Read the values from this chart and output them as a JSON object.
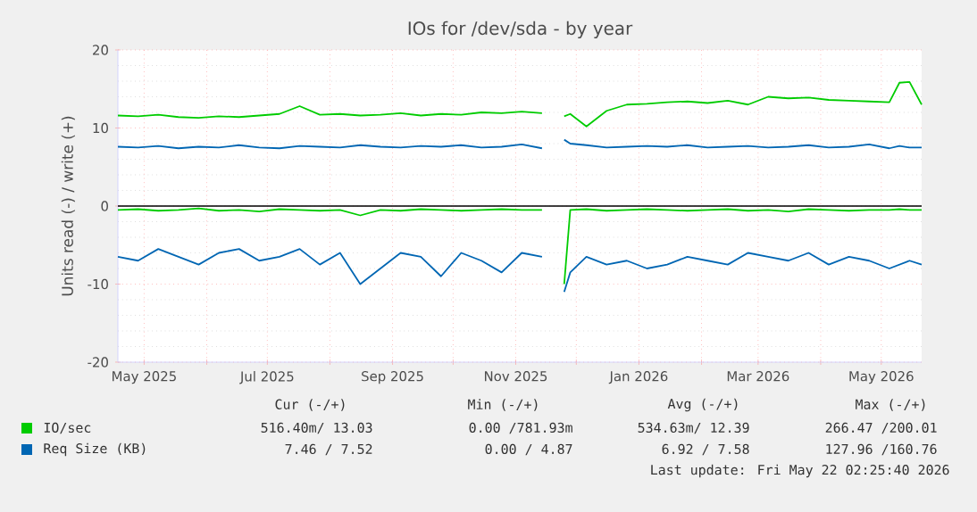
{
  "chart_data": {
    "type": "line",
    "title": "IOs for /dev/sda - by year",
    "ylabel": "Units read (-) / write (+)",
    "x": [
      "2025-04-18",
      "2025-04-28",
      "2025-05-08",
      "2025-05-18",
      "2025-05-28",
      "2025-06-07",
      "2025-06-17",
      "2025-06-27",
      "2025-07-07",
      "2025-07-17",
      "2025-07-27",
      "2025-08-06",
      "2025-08-16",
      "2025-08-26",
      "2025-09-05",
      "2025-09-15",
      "2025-09-25",
      "2025-10-05",
      "2025-10-15",
      "2025-10-25",
      "2025-11-04",
      "2025-11-14",
      "2025-11-20",
      "2025-11-25",
      "2025-11-28",
      "2025-12-06",
      "2025-12-16",
      "2025-12-26",
      "2026-01-05",
      "2026-01-15",
      "2026-01-25",
      "2026-02-04",
      "2026-02-14",
      "2026-02-24",
      "2026-03-06",
      "2026-03-16",
      "2026-03-26",
      "2026-04-05",
      "2026-04-15",
      "2026-04-25",
      "2026-05-05",
      "2026-05-10",
      "2026-05-15",
      "2026-05-21"
    ],
    "series": [
      {
        "name": "IO/sec",
        "color": "#00cc00",
        "values": [
          11.6,
          11.5,
          11.7,
          11.4,
          11.3,
          11.5,
          11.4,
          11.6,
          11.8,
          12.8,
          11.7,
          11.8,
          11.6,
          11.7,
          11.9,
          11.6,
          11.8,
          11.7,
          12.0,
          11.9,
          12.1,
          11.9,
          null,
          11.5,
          11.8,
          10.2,
          12.2,
          13.0,
          13.1,
          13.3,
          13.4,
          13.2,
          13.5,
          13.0,
          14.0,
          13.8,
          13.9,
          13.6,
          13.5,
          13.4,
          13.3,
          15.8,
          15.9,
          13.0
        ]
      },
      {
        "name": "Req Size (KB)",
        "color": "#0066b3",
        "values": [
          7.6,
          7.5,
          7.7,
          7.4,
          7.6,
          7.5,
          7.8,
          7.5,
          7.4,
          7.7,
          7.6,
          7.5,
          7.8,
          7.6,
          7.5,
          7.7,
          7.6,
          7.8,
          7.5,
          7.6,
          7.9,
          7.4,
          null,
          8.5,
          8.0,
          7.8,
          7.5,
          7.6,
          7.7,
          7.6,
          7.8,
          7.5,
          7.6,
          7.7,
          7.5,
          7.6,
          7.8,
          7.5,
          7.6,
          7.9,
          7.4,
          7.7,
          7.5,
          7.5
        ]
      },
      {
        "color": "#00cc00",
        "values": [
          -0.5,
          -0.4,
          -0.6,
          -0.5,
          -0.3,
          -0.6,
          -0.5,
          -0.7,
          -0.4,
          -0.5,
          -0.6,
          -0.5,
          -1.2,
          -0.5,
          -0.6,
          -0.4,
          -0.5,
          -0.6,
          -0.5,
          -0.4,
          -0.5,
          -0.5,
          null,
          -10,
          -0.5,
          -0.4,
          -0.6,
          -0.5,
          -0.4,
          -0.5,
          -0.6,
          -0.5,
          -0.4,
          -0.6,
          -0.5,
          -0.7,
          -0.4,
          -0.5,
          -0.6,
          -0.5,
          -0.5,
          -0.4,
          -0.5,
          -0.5
        ]
      },
      {
        "color": "#0066b3",
        "values": [
          -6.5,
          -7.0,
          -5.5,
          -6.5,
          -7.5,
          -6.0,
          -5.5,
          -7.0,
          -6.5,
          -5.5,
          -7.5,
          -6.0,
          -10.0,
          -8.0,
          -6.0,
          -6.5,
          -9.0,
          -6.0,
          -7.0,
          -8.5,
          -6.0,
          -6.5,
          null,
          -11.0,
          -8.5,
          -6.5,
          -7.5,
          -7.0,
          -8.0,
          -7.5,
          -6.5,
          -7.0,
          -7.5,
          -6.0,
          -6.5,
          -7.0,
          -6.0,
          -7.5,
          -6.5,
          -7.0,
          -8.0,
          -7.5,
          -7.0,
          -7.5
        ]
      }
    ],
    "xlim": [
      "2025-04-18",
      "2026-05-21"
    ],
    "xticks": [
      {
        "value": "2025-05-01",
        "label": "May 2025"
      },
      {
        "value": "2025-06-01",
        "label": null
      },
      {
        "value": "2025-07-01",
        "label": "Jul 2025"
      },
      {
        "value": "2025-08-01",
        "label": null
      },
      {
        "value": "2025-09-01",
        "label": "Sep 2025"
      },
      {
        "value": "2025-10-01",
        "label": null
      },
      {
        "value": "2025-11-01",
        "label": "Nov 2025"
      },
      {
        "value": "2025-12-01",
        "label": null
      },
      {
        "value": "2026-01-01",
        "label": "Jan 2026"
      },
      {
        "value": "2026-02-01",
        "label": null
      },
      {
        "value": "2026-03-01",
        "label": "Mar 2026"
      },
      {
        "value": "2026-04-01",
        "label": null
      },
      {
        "value": "2026-05-01",
        "label": "May 2026"
      }
    ],
    "ylim": [
      -20,
      20
    ],
    "yticks": [
      -20,
      -10,
      0,
      10,
      20
    ],
    "ref_lines": [
      {
        "axis": "y",
        "value": 0,
        "color": "#000000"
      }
    ],
    "grid": true,
    "legend": "bottom",
    "annotations": [
      "Cur (-/+)",
      "Min (-/+)",
      "Avg (-/+)",
      "Max (-/+)",
      "516.40m/ 13.03",
      "0.00 /781.93m",
      "534.63m/ 12.39",
      "266.47 /200.01",
      "7.46 /  7.52",
      "0.00 /  4.87",
      "6.92 /  7.58",
      "127.96 /160.76",
      "Last update: Fri May 22 02:25:40 2026"
    ]
  }
}
